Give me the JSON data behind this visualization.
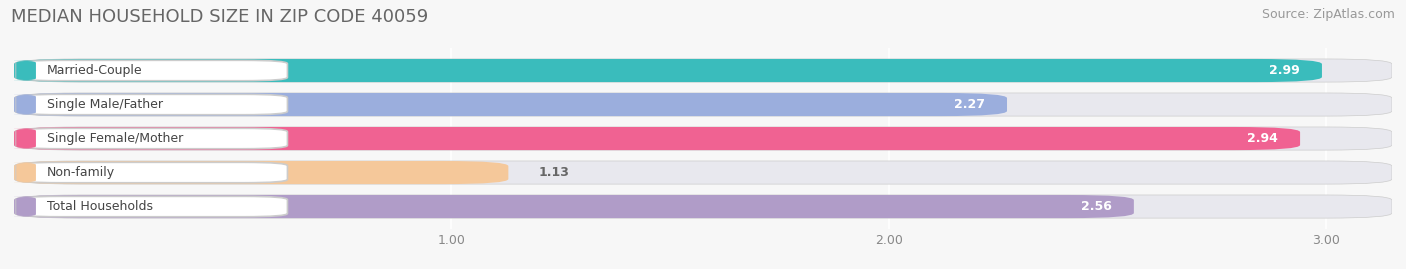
{
  "title": "MEDIAN HOUSEHOLD SIZE IN ZIP CODE 40059",
  "source": "Source: ZipAtlas.com",
  "categories": [
    "Married-Couple",
    "Single Male/Father",
    "Single Female/Mother",
    "Non-family",
    "Total Households"
  ],
  "values": [
    2.99,
    2.27,
    2.94,
    1.13,
    2.56
  ],
  "bar_colors": [
    "#3abcbc",
    "#9baedd",
    "#f06292",
    "#f5c89a",
    "#b09cc8"
  ],
  "label_left_colors": [
    "#3abcbc",
    "#9baedd",
    "#f06292",
    "#f5c89a",
    "#b09cc8"
  ],
  "xlim": [
    0.0,
    3.15
  ],
  "xmin": 0.0,
  "xticks": [
    1.0,
    2.0,
    3.0
  ],
  "background_color": "#f7f7f7",
  "bar_bg_color": "#e8e8ee",
  "title_fontsize": 13,
  "source_fontsize": 9,
  "label_fontsize": 9,
  "value_fontsize": 9
}
